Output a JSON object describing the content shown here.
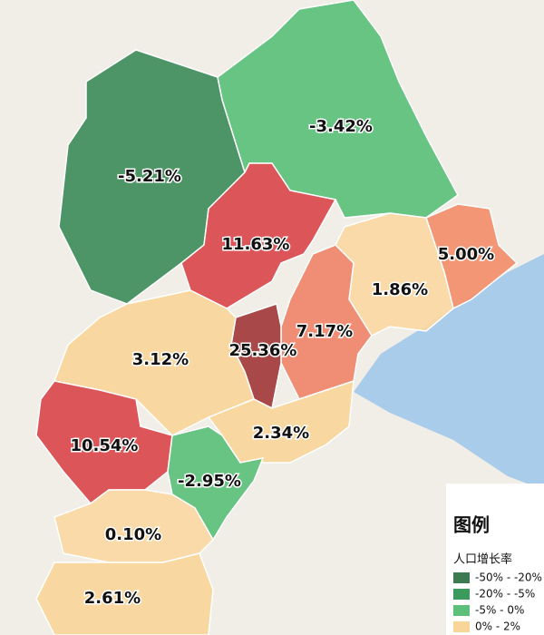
{
  "regions": [
    {
      "label": "-5.21%",
      "color": "#3f8d5a"
    },
    {
      "label": "-3.42%",
      "color": "#5cc07a"
    },
    {
      "label": "11.63%",
      "color": "#d9484c"
    },
    {
      "label": "5.00%",
      "color": "#f28e6a"
    },
    {
      "label": "1.86%",
      "color": "#fad8a2"
    },
    {
      "label": "7.17%",
      "color": "#f0866a"
    },
    {
      "label": "25.36%",
      "color": "#a33a3a"
    },
    {
      "label": "3.12%",
      "color": "#fad59a"
    },
    {
      "label": "2.34%",
      "color": "#fad59a"
    },
    {
      "label": "10.54%",
      "color": "#d9484c"
    },
    {
      "label": "-2.95%",
      "color": "#5cc07a"
    },
    {
      "label": "0.10%",
      "color": "#fad8a2"
    },
    {
      "label": "2.61%",
      "color": "#fad59a"
    }
  ],
  "legend": {
    "title": "图例",
    "subtitle": "人口增长率",
    "items": [
      {
        "label": "-50% - -20%",
        "color": "#3d7a52"
      },
      {
        "label": "-20% - -5%",
        "color": "#3c9a5c"
      },
      {
        "label": "-5% - 0%",
        "color": "#5cc07a"
      },
      {
        "label": "0% - 2%",
        "color": "#fad59a"
      }
    ]
  }
}
